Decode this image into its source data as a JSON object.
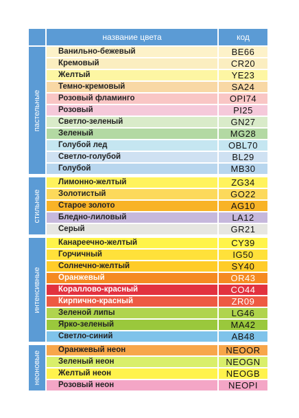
{
  "header": {
    "name_label": "название цвета",
    "code_label": "код"
  },
  "groups": [
    {
      "label": "пастельные",
      "rows": [
        {
          "name": "Ванильно-бежевый",
          "code": "BE66",
          "color": "#fdf2c9"
        },
        {
          "name": "Кремовый",
          "code": "CR20",
          "color": "#fbeec0"
        },
        {
          "name": "Желтый",
          "code": "YE23",
          "color": "#fdf6a3"
        },
        {
          "name": "Темно-кремовый",
          "code": "SA24",
          "color": "#f8d8a5"
        },
        {
          "name": "Розовый фламинго",
          "code": "OPI74",
          "color": "#f9c6c5"
        },
        {
          "name": "Розовый",
          "code": "PI25",
          "color": "#f5c9da"
        },
        {
          "name": "Светло-зеленый",
          "code": "GN27",
          "color": "#d9ebc9"
        },
        {
          "name": "Зеленый",
          "code": "MG28",
          "color": "#b3d9a3"
        },
        {
          "name": "Голубой лед",
          "code": "OBL70",
          "color": "#c5e6f1"
        },
        {
          "name": "Светло-голубой",
          "code": "BL29",
          "color": "#cfe1f2"
        },
        {
          "name": "Голубой",
          "code": "MB30",
          "color": "#b8d6ee"
        }
      ]
    },
    {
      "label": "стильные",
      "rows": [
        {
          "name": "Лимонно-желтый",
          "code": "ZG34",
          "color": "#fff35c"
        },
        {
          "name": "Золотистый",
          "code": "GO22",
          "color": "#fcd95b"
        },
        {
          "name": "Старое золото",
          "code": "AG10",
          "color": "#f8b327"
        },
        {
          "name": "Бледно-лиловый",
          "code": "LA12",
          "color": "#c6b8dc"
        },
        {
          "name": "Серый",
          "code": "GR21",
          "color": "#e6e6e1"
        }
      ]
    },
    {
      "label": "интенсивные",
      "rows": [
        {
          "name": "Канареечно-желтый",
          "code": "CY39",
          "color": "#fff44a"
        },
        {
          "name": "Горчичный",
          "code": "IG50",
          "color": "#ffe13a"
        },
        {
          "name": "Солнечно-желтый",
          "code": "SY40",
          "color": "#ffcc29"
        },
        {
          "name": "Оранжевый",
          "code": "OR43",
          "color": "#f58a21",
          "light": true
        },
        {
          "name": "Кораллово-красный",
          "code": "CO44",
          "color": "#e2323f",
          "light": true
        },
        {
          "name": "Кирпично-красный",
          "code": "ZR09",
          "color": "#ee5a43",
          "light": true
        },
        {
          "name": "Зеленой липы",
          "code": "LG46",
          "color": "#b0d44d"
        },
        {
          "name": "Ярко-зеленый",
          "code": "MA42",
          "color": "#9ac83c"
        },
        {
          "name": "Светло-синий",
          "code": "AB48",
          "color": "#7fc3ea"
        }
      ]
    },
    {
      "label": "неоновые",
      "rows": [
        {
          "name": "Оранжевый неон",
          "code": "NEOOR",
          "color": "#f7a64a"
        },
        {
          "name": "Зеленый неон",
          "code": "NEOGN",
          "color": "#d9ef6a"
        },
        {
          "name": "Желтый неон",
          "code": "NEOGB",
          "color": "#fff34d"
        },
        {
          "name": "Розовый неон",
          "code": "NEOPI",
          "color": "#f4a6c6"
        }
      ]
    }
  ]
}
